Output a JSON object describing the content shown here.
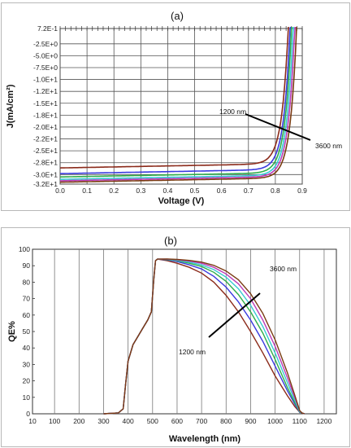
{
  "chart_data": [
    {
      "type": "line",
      "panel_label": "(a)",
      "xlabel": "Voltage (V)",
      "ylabel": "J(mA/cm²)",
      "xlim": [
        0,
        0.9
      ],
      "ylim": [
        -32,
        0.72
      ],
      "x_ticks": [
        "0.0",
        "0.1",
        "0.2",
        "0.3",
        "0.4",
        "0.5",
        "0.6",
        "0.7",
        "0.8",
        "0.9"
      ],
      "x_tick_values": [
        0,
        0.1,
        0.2,
        0.3,
        0.4,
        0.5,
        0.6,
        0.7,
        0.8,
        0.9
      ],
      "y_ticks": [
        "7.2E-1",
        "-2.5E+0",
        "-5.0E+0",
        "-7.5E+0",
        "-1.0E+1",
        "-1.2E+1",
        "-1.5E+1",
        "-1.8E+1",
        "-2.0E+1",
        "-2.2E+1",
        "-2.5E+1",
        "-2.8E+1",
        "-3.0E+1",
        "-3.2E+1"
      ],
      "y_tick_values": [
        0.72,
        -2.5,
        -5,
        -7.5,
        -10,
        -12.5,
        -15,
        -17.5,
        -20,
        -22.5,
        -25,
        -27.5,
        -30,
        -32
      ],
      "grid": true,
      "series": [
        {
          "color": "#8b2a1a",
          "jsc": -28.6,
          "voc": 0.848
        },
        {
          "color": "#3a3adf",
          "jsc": -29.8,
          "voc": 0.855
        },
        {
          "color": "#2fae4a",
          "jsc": -30.5,
          "voc": 0.86
        },
        {
          "color": "#37c9d3",
          "jsc": -31.0,
          "voc": 0.866
        },
        {
          "color": "#bb3ab7",
          "jsc": -31.3,
          "voc": 0.872
        },
        {
          "color": "#7a3b12",
          "jsc": -31.6,
          "voc": 0.879
        }
      ],
      "annotations": {
        "low": "1200 nm",
        "high": "3600 nm"
      }
    },
    {
      "type": "line",
      "panel_label": "(b)",
      "xlabel": "Wavelength (nm)",
      "ylabel": "QE%",
      "xlim": [
        10,
        1250
      ],
      "ylim": [
        0,
        100
      ],
      "x_ticks": [
        "10",
        "100",
        "200",
        "300",
        "400",
        "500",
        "600",
        "700",
        "800",
        "900",
        "1000",
        "1100",
        "1200"
      ],
      "x_tick_values": [
        10,
        100,
        200,
        300,
        400,
        500,
        600,
        700,
        800,
        900,
        1000,
        1100,
        1200
      ],
      "y_ticks": [
        "0",
        "10",
        "20",
        "30",
        "40",
        "50",
        "60",
        "70",
        "80",
        "90",
        "100"
      ],
      "y_tick_values": [
        0,
        10,
        20,
        30,
        40,
        50,
        60,
        70,
        80,
        90,
        100
      ],
      "grid": true,
      "shared_rise": [
        [
          300,
          0
        ],
        [
          360,
          0.5
        ],
        [
          380,
          3
        ],
        [
          390,
          18
        ],
        [
          400,
          32
        ],
        [
          420,
          42
        ],
        [
          440,
          47
        ],
        [
          460,
          52
        ],
        [
          480,
          57
        ],
        [
          495,
          62
        ],
        [
          505,
          82
        ],
        [
          512,
          93
        ],
        [
          520,
          94
        ]
      ],
      "series": [
        {
          "color": "#8b2a1a",
          "points": [
            [
              520,
              94
            ],
            [
              560,
              93
            ],
            [
              600,
              91.5
            ],
            [
              650,
              89
            ],
            [
              700,
              85.5
            ],
            [
              750,
              80
            ],
            [
              800,
              72
            ],
            [
              850,
              62
            ],
            [
              900,
              50
            ],
            [
              950,
              37
            ],
            [
              1000,
              23
            ],
            [
              1050,
              11
            ],
            [
              1080,
              4.5
            ],
            [
              1100,
              1
            ]
          ]
        },
        {
          "color": "#3a3adf",
          "points": [
            [
              520,
              94
            ],
            [
              560,
              93.5
            ],
            [
              600,
              92.5
            ],
            [
              650,
              90.5
            ],
            [
              700,
              88
            ],
            [
              750,
              83.5
            ],
            [
              800,
              77
            ],
            [
              850,
              68
            ],
            [
              900,
              57
            ],
            [
              950,
              44
            ],
            [
              1000,
              29
            ],
            [
              1050,
              14
            ],
            [
              1080,
              6
            ],
            [
              1100,
              1
            ]
          ]
        },
        {
          "color": "#2fae4a",
          "points": [
            [
              520,
              94
            ],
            [
              560,
              93.7
            ],
            [
              600,
              93
            ],
            [
              650,
              91.5
            ],
            [
              700,
              89.5
            ],
            [
              750,
              86
            ],
            [
              800,
              80.5
            ],
            [
              850,
              72.5
            ],
            [
              900,
              62
            ],
            [
              950,
              49
            ],
            [
              1000,
              33
            ],
            [
              1050,
              16
            ],
            [
              1080,
              7
            ],
            [
              1100,
              1.2
            ]
          ]
        },
        {
          "color": "#37c9d3",
          "points": [
            [
              520,
              94
            ],
            [
              560,
              93.9
            ],
            [
              600,
              93.3
            ],
            [
              650,
              92.2
            ],
            [
              700,
              90.5
            ],
            [
              750,
              87.6
            ],
            [
              800,
              83
            ],
            [
              850,
              76
            ],
            [
              900,
              66
            ],
            [
              950,
              53
            ],
            [
              1000,
              37
            ],
            [
              1050,
              19
            ],
            [
              1080,
              8.5
            ],
            [
              1100,
              1.5
            ]
          ]
        },
        {
          "color": "#bb3ab7",
          "points": [
            [
              520,
              94
            ],
            [
              560,
              94
            ],
            [
              600,
              93.6
            ],
            [
              650,
              92.8
            ],
            [
              700,
              91.5
            ],
            [
              750,
              89
            ],
            [
              800,
              85
            ],
            [
              850,
              79
            ],
            [
              900,
              70
            ],
            [
              950,
              57
            ],
            [
              1000,
              41
            ],
            [
              1050,
              22
            ],
            [
              1080,
              10
            ],
            [
              1100,
              1.8
            ]
          ]
        },
        {
          "color": "#7a3b12",
          "points": [
            [
              520,
              94
            ],
            [
              560,
              94.1
            ],
            [
              600,
              93.8
            ],
            [
              650,
              93.2
            ],
            [
              700,
              92.2
            ],
            [
              750,
              90.2
            ],
            [
              800,
              86.8
            ],
            [
              850,
              81.5
            ],
            [
              900,
              73
            ],
            [
              950,
              61
            ],
            [
              1000,
              45
            ],
            [
              1050,
              25
            ],
            [
              1080,
              11.5
            ],
            [
              1100,
              2
            ]
          ]
        }
      ],
      "annotations": {
        "low": "1200 nm",
        "high": "3600 nm"
      }
    }
  ]
}
